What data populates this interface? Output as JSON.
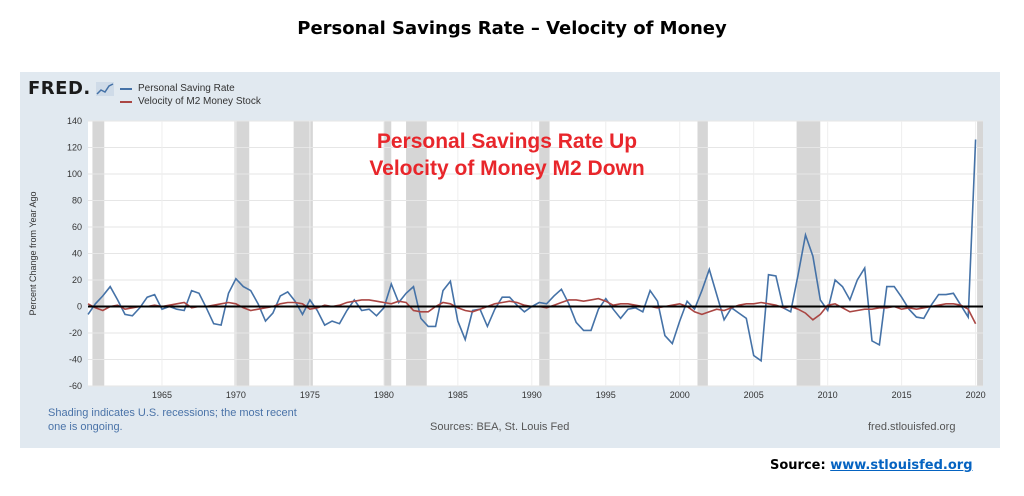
{
  "page_title": "Personal Savings Rate – Velocity of Money",
  "fred": {
    "logo_text": "FRED",
    "legend": [
      {
        "label": "Personal Saving Rate",
        "color": "#4572a7"
      },
      {
        "label": "Velocity of M2 Money Stock",
        "color": "#aa4643"
      }
    ],
    "note": "Shading indicates U.S. recessions; the most recent one is ongoing.",
    "sources": "Sources: BEA, St. Louis Fed",
    "site": "fred.stlouisfed.org"
  },
  "source_line": {
    "label": "Source:",
    "link_text": "www.stlouisfed.org"
  },
  "chart_data": {
    "type": "line",
    "ylabel": "Percent Change from Year Ago",
    "ylim": [
      -60,
      140
    ],
    "xlim": [
      1960,
      2020.5
    ],
    "yticks": [
      -60,
      -40,
      -20,
      0,
      20,
      40,
      60,
      80,
      100,
      120,
      140
    ],
    "xticks": [
      1965,
      1970,
      1975,
      1980,
      1985,
      1990,
      1995,
      2000,
      2005,
      2010,
      2015,
      2020
    ],
    "grid": true,
    "legend_position": "top-left",
    "annotation": [
      "Personal Savings Rate Up",
      "Velocity of Money M2 Down"
    ],
    "annotation_color": "#e8262b",
    "recession_color": "#d6d6d6",
    "zero_line_color": "#000000",
    "recessions": [
      [
        1960.3,
        1961.1
      ],
      [
        1969.9,
        1970.9
      ],
      [
        1973.9,
        1975.2
      ],
      [
        1980.0,
        1980.5
      ],
      [
        1981.5,
        1982.9
      ],
      [
        1990.5,
        1991.2
      ],
      [
        2001.2,
        2001.9
      ],
      [
        2007.9,
        2009.5
      ],
      [
        2020.1,
        2020.5
      ]
    ],
    "series": [
      {
        "name": "Personal Saving Rate",
        "color": "#4572a7",
        "points": [
          [
            1960,
            -6
          ],
          [
            1960.5,
            2
          ],
          [
            1961,
            8
          ],
          [
            1961.5,
            15
          ],
          [
            1962,
            5
          ],
          [
            1962.5,
            -6
          ],
          [
            1963,
            -7
          ],
          [
            1963.5,
            -1
          ],
          [
            1964,
            7
          ],
          [
            1964.5,
            9
          ],
          [
            1965,
            -2
          ],
          [
            1965.5,
            0
          ],
          [
            1966,
            -2
          ],
          [
            1966.5,
            -3
          ],
          [
            1967,
            12
          ],
          [
            1967.5,
            10
          ],
          [
            1968,
            -1
          ],
          [
            1968.5,
            -13
          ],
          [
            1969,
            -14
          ],
          [
            1969.5,
            10
          ],
          [
            1970,
            21
          ],
          [
            1970.5,
            15
          ],
          [
            1971,
            12
          ],
          [
            1971.5,
            2
          ],
          [
            1972,
            -11
          ],
          [
            1972.5,
            -5
          ],
          [
            1973,
            8
          ],
          [
            1973.5,
            11
          ],
          [
            1974,
            4
          ],
          [
            1974.5,
            -6
          ],
          [
            1975,
            5
          ],
          [
            1975.5,
            -3
          ],
          [
            1976,
            -14
          ],
          [
            1976.5,
            -11
          ],
          [
            1977,
            -13
          ],
          [
            1977.5,
            -3
          ],
          [
            1978,
            5
          ],
          [
            1978.5,
            -3
          ],
          [
            1979,
            -2
          ],
          [
            1979.5,
            -7
          ],
          [
            1980,
            -1
          ],
          [
            1980.5,
            17
          ],
          [
            1981,
            3
          ],
          [
            1981.5,
            10
          ],
          [
            1982,
            15
          ],
          [
            1982.5,
            -9
          ],
          [
            1983,
            -15
          ],
          [
            1983.5,
            -15
          ],
          [
            1984,
            12
          ],
          [
            1984.5,
            19
          ],
          [
            1985,
            -11
          ],
          [
            1985.5,
            -25
          ],
          [
            1986,
            -3
          ],
          [
            1986.5,
            -2
          ],
          [
            1987,
            -15
          ],
          [
            1987.5,
            -2
          ],
          [
            1988,
            7
          ],
          [
            1988.5,
            7
          ],
          [
            1989,
            1
          ],
          [
            1989.5,
            -4
          ],
          [
            1990,
            0
          ],
          [
            1990.5,
            3
          ],
          [
            1991,
            2
          ],
          [
            1991.5,
            8
          ],
          [
            1992,
            13
          ],
          [
            1992.5,
            2
          ],
          [
            1993,
            -12
          ],
          [
            1993.5,
            -18
          ],
          [
            1994,
            -18
          ],
          [
            1994.5,
            -2
          ],
          [
            1995,
            6
          ],
          [
            1995.5,
            -2
          ],
          [
            1996,
            -9
          ],
          [
            1996.5,
            -2
          ],
          [
            1997,
            -1
          ],
          [
            1997.5,
            -4
          ],
          [
            1998,
            12
          ],
          [
            1998.5,
            4
          ],
          [
            1999,
            -22
          ],
          [
            1999.5,
            -28
          ],
          [
            2000,
            -11
          ],
          [
            2000.5,
            4
          ],
          [
            2001,
            -2
          ],
          [
            2001.5,
            12
          ],
          [
            2002,
            28
          ],
          [
            2002.5,
            9
          ],
          [
            2003,
            -10
          ],
          [
            2003.5,
            -1
          ],
          [
            2004,
            -5
          ],
          [
            2004.5,
            -9
          ],
          [
            2005,
            -37
          ],
          [
            2005.5,
            -41
          ],
          [
            2006,
            24
          ],
          [
            2006.5,
            23
          ],
          [
            2007,
            -1
          ],
          [
            2007.5,
            -4
          ],
          [
            2008,
            24
          ],
          [
            2008.5,
            54
          ],
          [
            2009,
            38
          ],
          [
            2009.5,
            5
          ],
          [
            2010,
            -3
          ],
          [
            2010.5,
            20
          ],
          [
            2011,
            15
          ],
          [
            2011.5,
            5
          ],
          [
            2012,
            20
          ],
          [
            2012.5,
            29
          ],
          [
            2013,
            -26
          ],
          [
            2013.5,
            -29
          ],
          [
            2014,
            15
          ],
          [
            2014.5,
            15
          ],
          [
            2015,
            7
          ],
          [
            2015.5,
            -2
          ],
          [
            2016,
            -8
          ],
          [
            2016.5,
            -9
          ],
          [
            2017,
            1
          ],
          [
            2017.5,
            9
          ],
          [
            2018,
            9
          ],
          [
            2018.5,
            10
          ],
          [
            2019,
            1
          ],
          [
            2019.5,
            -8
          ],
          [
            2020,
            126
          ]
        ]
      },
      {
        "name": "Velocity of M2 Money Stock",
        "color": "#aa4643",
        "points": [
          [
            1960,
            2
          ],
          [
            1960.5,
            -1
          ],
          [
            1961,
            -3
          ],
          [
            1961.5,
            0
          ],
          [
            1962,
            1
          ],
          [
            1962.5,
            -2
          ],
          [
            1963,
            -1
          ],
          [
            1963.5,
            0
          ],
          [
            1964,
            0
          ],
          [
            1964.5,
            1
          ],
          [
            1965,
            0
          ],
          [
            1965.5,
            1
          ],
          [
            1966,
            2
          ],
          [
            1966.5,
            3
          ],
          [
            1967,
            -1
          ],
          [
            1967.5,
            0
          ],
          [
            1968,
            0
          ],
          [
            1968.5,
            1
          ],
          [
            1969,
            2
          ],
          [
            1969.5,
            3
          ],
          [
            1970,
            2
          ],
          [
            1970.5,
            -1
          ],
          [
            1971,
            -3
          ],
          [
            1971.5,
            -2
          ],
          [
            1972,
            -1
          ],
          [
            1972.5,
            0
          ],
          [
            1973,
            2
          ],
          [
            1973.5,
            3
          ],
          [
            1974,
            3
          ],
          [
            1974.5,
            2
          ],
          [
            1975,
            -2
          ],
          [
            1975.5,
            -1
          ],
          [
            1976,
            1
          ],
          [
            1976.5,
            0
          ],
          [
            1977,
            1
          ],
          [
            1977.5,
            3
          ],
          [
            1978,
            4
          ],
          [
            1978.5,
            5
          ],
          [
            1979,
            5
          ],
          [
            1979.5,
            4
          ],
          [
            1980,
            3
          ],
          [
            1980.5,
            2
          ],
          [
            1981,
            4
          ],
          [
            1981.5,
            3
          ],
          [
            1982,
            -3
          ],
          [
            1982.5,
            -4
          ],
          [
            1983,
            -4
          ],
          [
            1983.5,
            0
          ],
          [
            1984,
            3
          ],
          [
            1984.5,
            2
          ],
          [
            1985,
            -1
          ],
          [
            1985.5,
            -3
          ],
          [
            1986,
            -4
          ],
          [
            1986.5,
            -2
          ],
          [
            1987,
            0
          ],
          [
            1987.5,
            2
          ],
          [
            1988,
            3
          ],
          [
            1988.5,
            4
          ],
          [
            1989,
            3
          ],
          [
            1989.5,
            1
          ],
          [
            1990,
            0
          ],
          [
            1990.5,
            0
          ],
          [
            1991,
            -1
          ],
          [
            1991.5,
            1
          ],
          [
            1992,
            3
          ],
          [
            1992.5,
            5
          ],
          [
            1993,
            5
          ],
          [
            1993.5,
            4
          ],
          [
            1994,
            5
          ],
          [
            1994.5,
            6
          ],
          [
            1995,
            4
          ],
          [
            1995.5,
            1
          ],
          [
            1996,
            2
          ],
          [
            1996.5,
            2
          ],
          [
            1997,
            1
          ],
          [
            1997.5,
            0
          ],
          [
            1998,
            0
          ],
          [
            1998.5,
            -1
          ],
          [
            1999,
            0
          ],
          [
            1999.5,
            1
          ],
          [
            2000,
            2
          ],
          [
            2000.5,
            0
          ],
          [
            2001,
            -4
          ],
          [
            2001.5,
            -6
          ],
          [
            2002,
            -4
          ],
          [
            2002.5,
            -2
          ],
          [
            2003,
            -3
          ],
          [
            2003.5,
            -1
          ],
          [
            2004,
            1
          ],
          [
            2004.5,
            2
          ],
          [
            2005,
            2
          ],
          [
            2005.5,
            3
          ],
          [
            2006,
            2
          ],
          [
            2006.5,
            1
          ],
          [
            2007,
            -1
          ],
          [
            2007.5,
            0
          ],
          [
            2008,
            -2
          ],
          [
            2008.5,
            -5
          ],
          [
            2009,
            -10
          ],
          [
            2009.5,
            -6
          ],
          [
            2010,
            1
          ],
          [
            2010.5,
            2
          ],
          [
            2011,
            -1
          ],
          [
            2011.5,
            -4
          ],
          [
            2012,
            -3
          ],
          [
            2012.5,
            -2
          ],
          [
            2013,
            -2
          ],
          [
            2013.5,
            -1
          ],
          [
            2014,
            -1
          ],
          [
            2014.5,
            0
          ],
          [
            2015,
            -2
          ],
          [
            2015.5,
            -1
          ],
          [
            2016,
            -2
          ],
          [
            2016.5,
            -1
          ],
          [
            2017,
            0
          ],
          [
            2017.5,
            1
          ],
          [
            2018,
            2
          ],
          [
            2018.5,
            2
          ],
          [
            2019,
            1
          ],
          [
            2019.5,
            -2
          ],
          [
            2020,
            -13
          ]
        ]
      }
    ]
  }
}
